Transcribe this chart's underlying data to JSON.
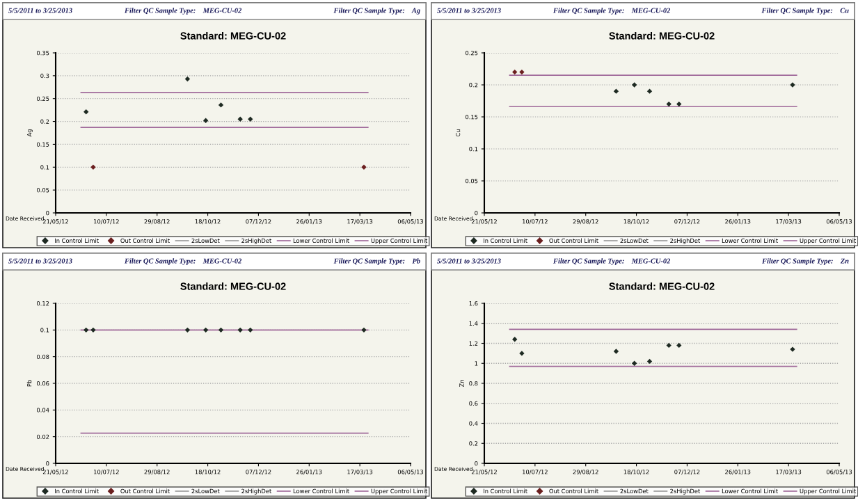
{
  "chart_data": [
    {
      "type": "scatter",
      "title": "Standard: MEG-CU-02",
      "annotations": [
        "5/5/2011 to 3/25/2013",
        "Filter QC Sample Type:    MEG-CU-02",
        "Filter QC Sample Type:    Ag"
      ],
      "xlabel": "Date Received",
      "ylabel": "Ag",
      "x": [
        "2012-06-20",
        "2012-06-27",
        "2012-09-28",
        "2012-10-16",
        "2012-10-31",
        "2012-11-19",
        "2012-11-29",
        "2013-03-21"
      ],
      "series": [
        {
          "name": "In Control Limit",
          "color": "#1e2a22",
          "marker": "diamond",
          "values": [
            0.221,
            null,
            0.293,
            0.202,
            0.236,
            0.205,
            0.205,
            null
          ]
        },
        {
          "name": "Out Control Limit",
          "color": "#6b1f1f",
          "marker": "diamond",
          "values": [
            null,
            0.1,
            null,
            null,
            null,
            null,
            null,
            0.1
          ]
        },
        {
          "name": "2sLowDet",
          "type": "line",
          "color": "#9a9a9a",
          "marker": "none",
          "values": [
            null,
            null,
            null,
            null,
            null,
            null,
            null,
            null
          ]
        },
        {
          "name": "2sHighDet",
          "type": "line",
          "color": "#9a9a9a",
          "marker": "none",
          "values": [
            null,
            null,
            null,
            null,
            null,
            null,
            null,
            null
          ]
        },
        {
          "name": "Lower Control Limit",
          "type": "line",
          "color": "#a06a9a",
          "marker": "none",
          "x": [
            "2012-06-15",
            "2013-03-25"
          ],
          "values": [
            0.187,
            0.187
          ]
        },
        {
          "name": "Upper Control Limit",
          "type": "line",
          "color": "#a06a9a",
          "marker": "none",
          "x": [
            "2012-06-15",
            "2013-03-25"
          ],
          "values": [
            0.263,
            0.263
          ]
        }
      ],
      "xlim": [
        "2012-05-21",
        "2013-05-06"
      ],
      "xticks": [
        {
          "value": "2012-05-21",
          "label": "21/05/12"
        },
        {
          "value": "2012-07-10",
          "label": "10/07/12"
        },
        {
          "value": "2012-08-29",
          "label": "29/08/12"
        },
        {
          "value": "2012-10-18",
          "label": "18/10/12"
        },
        {
          "value": "2012-12-07",
          "label": "07/12/12"
        },
        {
          "value": "2013-01-26",
          "label": "26/01/13"
        },
        {
          "value": "2013-03-17",
          "label": "17/03/13"
        },
        {
          "value": "2013-05-06",
          "label": "06/05/13"
        }
      ],
      "ylim": [
        0,
        0.35
      ],
      "yticks": [
        0,
        0.05,
        0.1,
        0.15,
        0.2,
        0.25,
        0.3,
        0.35
      ],
      "grid": "y",
      "legend": "bottom",
      "line_style": "solid"
    },
    {
      "type": "scatter",
      "title": "Standard: MEG-CU-02",
      "annotations": [
        "5/5/2011 to 3/25/2013",
        "Filter QC Sample Type:    MEG-CU-02",
        "Filter QC Sample Type:    Cu"
      ],
      "xlabel": "Date Received",
      "ylabel": "Cu",
      "x": [
        "2012-06-20",
        "2012-06-27",
        "2012-09-28",
        "2012-10-16",
        "2012-10-31",
        "2012-11-19",
        "2012-11-29",
        "2013-03-21"
      ],
      "series": [
        {
          "name": "In Control Limit",
          "color": "#1e2a22",
          "marker": "diamond",
          "values": [
            null,
            null,
            0.19,
            0.2,
            0.19,
            0.17,
            0.17,
            0.2
          ]
        },
        {
          "name": "Out Control Limit",
          "color": "#6b1f1f",
          "marker": "diamond",
          "values": [
            0.22,
            0.22,
            null,
            null,
            null,
            null,
            null,
            null
          ]
        },
        {
          "name": "2sLowDet",
          "type": "line",
          "color": "#9a9a9a",
          "marker": "none",
          "values": [
            null,
            null,
            null,
            null,
            null,
            null,
            null,
            null
          ]
        },
        {
          "name": "2sHighDet",
          "type": "line",
          "color": "#9a9a9a",
          "marker": "none",
          "values": [
            null,
            null,
            null,
            null,
            null,
            null,
            null,
            null
          ]
        },
        {
          "name": "Lower Control Limit",
          "type": "line",
          "color": "#a06a9a",
          "marker": "none",
          "x": [
            "2012-06-15",
            "2013-03-25"
          ],
          "values": [
            0.166,
            0.166
          ]
        },
        {
          "name": "Upper Control Limit",
          "type": "line",
          "color": "#a06a9a",
          "marker": "none",
          "x": [
            "2012-06-15",
            "2013-03-25"
          ],
          "values": [
            0.215,
            0.215
          ]
        }
      ],
      "xlim": [
        "2012-05-21",
        "2013-05-06"
      ],
      "xticks": [
        {
          "value": "2012-05-21",
          "label": "21/05/12"
        },
        {
          "value": "2012-07-10",
          "label": "10/07/12"
        },
        {
          "value": "2012-08-29",
          "label": "29/08/12"
        },
        {
          "value": "2012-10-18",
          "label": "18/10/12"
        },
        {
          "value": "2012-12-07",
          "label": "07/12/12"
        },
        {
          "value": "2013-01-26",
          "label": "26/01/13"
        },
        {
          "value": "2013-03-17",
          "label": "17/03/13"
        },
        {
          "value": "2013-05-06",
          "label": "06/05/13"
        }
      ],
      "ylim": [
        0,
        0.25
      ],
      "yticks": [
        0,
        0.05,
        0.1,
        0.15,
        0.2,
        0.25
      ],
      "grid": "y",
      "legend": "bottom",
      "line_style": "solid"
    },
    {
      "type": "scatter",
      "title": "Standard: MEG-CU-02",
      "annotations": [
        "5/5/2011 to 3/25/2013",
        "Filter QC Sample Type:    MEG-CU-02",
        "Filter QC Sample Type:    Pb"
      ],
      "xlabel": "Date Received",
      "ylabel": "Pb",
      "x": [
        "2012-06-20",
        "2012-06-27",
        "2012-09-28",
        "2012-10-16",
        "2012-10-31",
        "2012-11-19",
        "2012-11-29",
        "2013-03-21"
      ],
      "series": [
        {
          "name": "In Control Limit",
          "color": "#1e2a22",
          "marker": "diamond",
          "values": [
            0.1,
            0.1,
            0.1,
            0.1,
            0.1,
            0.1,
            0.1,
            0.1
          ]
        },
        {
          "name": "Out Control Limit",
          "color": "#6b1f1f",
          "marker": "diamond",
          "values": [
            null,
            null,
            null,
            null,
            null,
            null,
            null,
            null
          ]
        },
        {
          "name": "2sLowDet",
          "type": "line",
          "color": "#9a9a9a",
          "marker": "none",
          "values": [
            null,
            null,
            null,
            null,
            null,
            null,
            null,
            null
          ]
        },
        {
          "name": "2sHighDet",
          "type": "line",
          "color": "#9a9a9a",
          "marker": "none",
          "values": [
            null,
            null,
            null,
            null,
            null,
            null,
            null,
            null
          ]
        },
        {
          "name": "Lower Control Limit",
          "type": "line",
          "color": "#a06a9a",
          "marker": "none",
          "x": [
            "2012-06-15",
            "2013-03-25"
          ],
          "values": [
            0.0226,
            0.0226
          ]
        },
        {
          "name": "Upper Control Limit",
          "type": "line",
          "color": "#a06a9a",
          "marker": "none",
          "x": [
            "2012-06-15",
            "2013-03-25"
          ],
          "values": [
            0.1,
            0.1
          ]
        }
      ],
      "xlim": [
        "2012-05-21",
        "2013-05-06"
      ],
      "xticks": [
        {
          "value": "2012-05-21",
          "label": "21/05/12"
        },
        {
          "value": "2012-07-10",
          "label": "10/07/12"
        },
        {
          "value": "2012-08-29",
          "label": "29/08/12"
        },
        {
          "value": "2012-10-18",
          "label": "18/10/12"
        },
        {
          "value": "2012-12-07",
          "label": "07/12/12"
        },
        {
          "value": "2013-01-26",
          "label": "26/01/13"
        },
        {
          "value": "2013-03-17",
          "label": "17/03/13"
        },
        {
          "value": "2013-05-06",
          "label": "06/05/13"
        }
      ],
      "ylim": [
        0,
        0.12
      ],
      "yticks": [
        0,
        0.02,
        0.04,
        0.06,
        0.08,
        0.1,
        0.12
      ],
      "grid": "y",
      "legend": "bottom",
      "line_style": "solid"
    },
    {
      "type": "scatter",
      "title": "Standard: MEG-CU-02",
      "annotations": [
        "5/5/2011 to 3/25/2013",
        "Filter QC Sample Type:    MEG-CU-02",
        "Filter QC Sample Type:    Zn"
      ],
      "xlabel": "Date Received",
      "ylabel": "Zn",
      "x": [
        "2012-06-20",
        "2012-06-27",
        "2012-09-28",
        "2012-10-16",
        "2012-10-31",
        "2012-11-19",
        "2012-11-29",
        "2013-03-21"
      ],
      "series": [
        {
          "name": "In Control Limit",
          "color": "#1e2a22",
          "marker": "diamond",
          "values": [
            1.24,
            1.1,
            1.12,
            1.0,
            1.02,
            1.18,
            1.18,
            1.14
          ]
        },
        {
          "name": "Out Control Limit",
          "color": "#6b1f1f",
          "marker": "diamond",
          "values": [
            null,
            null,
            null,
            null,
            null,
            null,
            null,
            null
          ]
        },
        {
          "name": "2sLowDet",
          "type": "line",
          "color": "#9a9a9a",
          "marker": "none",
          "values": [
            null,
            null,
            null,
            null,
            null,
            null,
            null,
            null
          ]
        },
        {
          "name": "2sHighDet",
          "type": "line",
          "color": "#9a9a9a",
          "marker": "none",
          "values": [
            null,
            null,
            null,
            null,
            null,
            null,
            null,
            null
          ]
        },
        {
          "name": "Lower Control Limit",
          "type": "line",
          "color": "#a06a9a",
          "marker": "none",
          "x": [
            "2012-06-15",
            "2013-03-25"
          ],
          "values": [
            0.97,
            0.97
          ]
        },
        {
          "name": "Upper Control Limit",
          "type": "line",
          "color": "#a06a9a",
          "marker": "none",
          "x": [
            "2012-06-15",
            "2013-03-25"
          ],
          "values": [
            1.34,
            1.34
          ]
        }
      ],
      "xlim": [
        "2012-05-21",
        "2013-05-06"
      ],
      "xticks": [
        {
          "value": "2012-05-21",
          "label": "21/05/12"
        },
        {
          "value": "2012-07-10",
          "label": "10/07/12"
        },
        {
          "value": "2012-08-29",
          "label": "29/08/12"
        },
        {
          "value": "2012-10-18",
          "label": "18/10/12"
        },
        {
          "value": "2012-12-07",
          "label": "07/12/12"
        },
        {
          "value": "2013-01-26",
          "label": "26/01/13"
        },
        {
          "value": "2013-03-17",
          "label": "17/03/13"
        },
        {
          "value": "2013-05-06",
          "label": "06/05/13"
        }
      ],
      "ylim": [
        0,
        1.6
      ],
      "yticks": [
        0,
        0.2,
        0.4,
        0.6,
        0.8,
        1,
        1.2,
        1.4,
        1.6
      ],
      "grid": "y",
      "legend": "bottom",
      "line_style": "solid"
    }
  ]
}
